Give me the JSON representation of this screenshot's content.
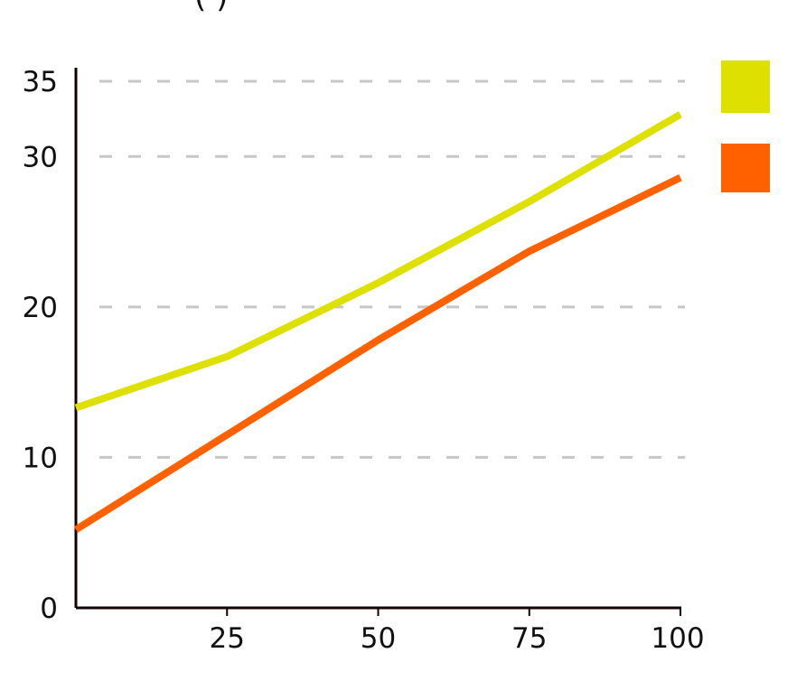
{
  "chart_data": {
    "type": "line",
    "title_fragment": "(                                                  )",
    "xlabel": "",
    "ylabel": "",
    "x": [
      0,
      25,
      50,
      75,
      100
    ],
    "xlim": [
      0,
      100
    ],
    "ylim": [
      0,
      35
    ],
    "x_ticks": [
      25,
      50,
      75,
      100
    ],
    "y_ticks": [
      0,
      10,
      20,
      30,
      35
    ],
    "gridlines_y": [
      10,
      20,
      30,
      35
    ],
    "grid": "dashed horizontal",
    "legend_placement": "top-right",
    "series": [
      {
        "color": "#dde000",
        "values": [
          13.3,
          16.7,
          21.6,
          27.0,
          32.8
        ]
      },
      {
        "color": "#ff6100",
        "values": [
          5.2,
          11.5,
          17.8,
          23.7,
          28.6
        ]
      }
    ]
  }
}
